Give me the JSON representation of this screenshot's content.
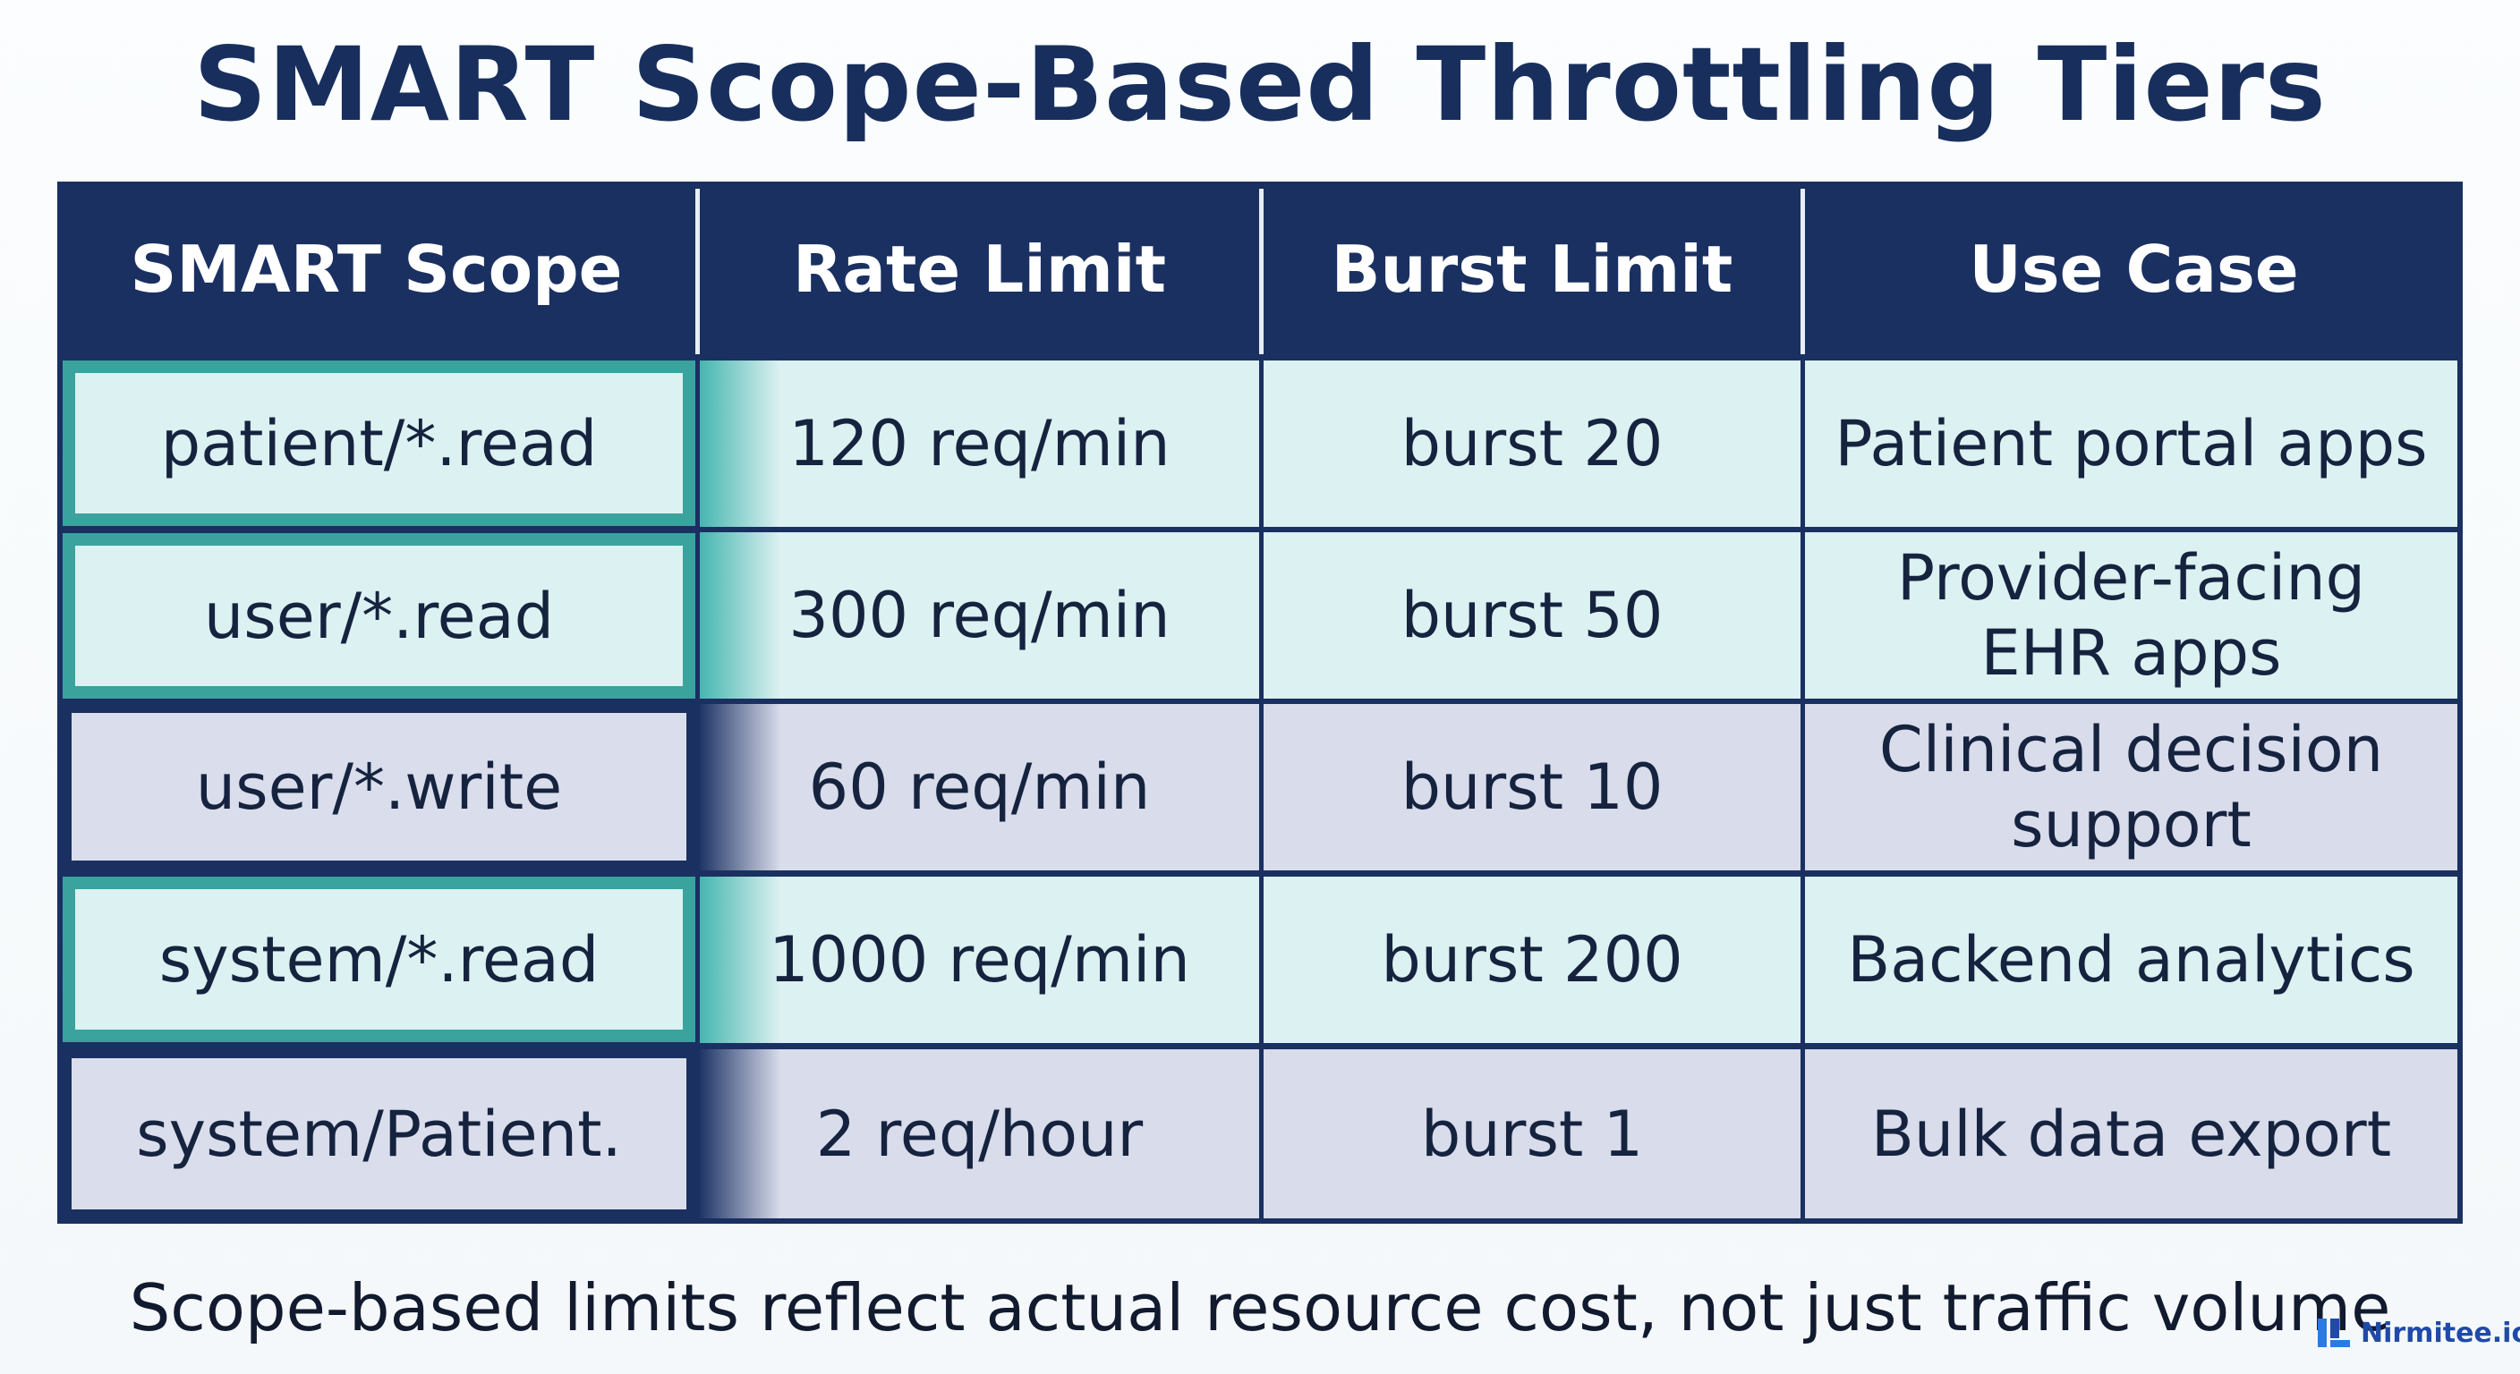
{
  "title": "SMART Scope-Based Throttling Tiers",
  "table": {
    "headers": [
      "SMART Scope",
      "Rate Limit",
      "Burst Limit",
      "Use Case"
    ],
    "rows": [
      {
        "scope": "patient/*.read",
        "rate": "120 req/min",
        "burst": "burst 20",
        "use_line1": "Patient portal apps",
        "use_line2": "",
        "tint": "mint"
      },
      {
        "scope": "user/*.read",
        "rate": "300 req/min",
        "burst": "burst 50",
        "use_line1": "Provider-facing",
        "use_line2": "EHR apps",
        "tint": "mint"
      },
      {
        "scope": "user/*.write",
        "rate": "60 req/min",
        "burst": "burst 10",
        "use_line1": "Clinical decision",
        "use_line2": "support",
        "tint": "lavender"
      },
      {
        "scope": "system/*.read",
        "rate": "1000 req/min",
        "burst": "burst 200",
        "use_line1": "Backend analytics",
        "use_line2": "",
        "tint": "mint"
      },
      {
        "scope": "system/Patient.",
        "rate": "2 req/hour",
        "burst": "burst 1",
        "use_line1": "Bulk data export",
        "use_line2": "",
        "tint": "lavender"
      }
    ]
  },
  "caption": "Scope-based limits reflect actual resource cost, not just traffic volume",
  "logo": {
    "text": "Nirmitee.io",
    "icon": "nirmitee-logo-icon"
  },
  "colors": {
    "header_bg": "#1a3061",
    "mint": "#dcf1f1",
    "lavender": "#d8dceb",
    "teal_accent": "#3aa39e"
  }
}
